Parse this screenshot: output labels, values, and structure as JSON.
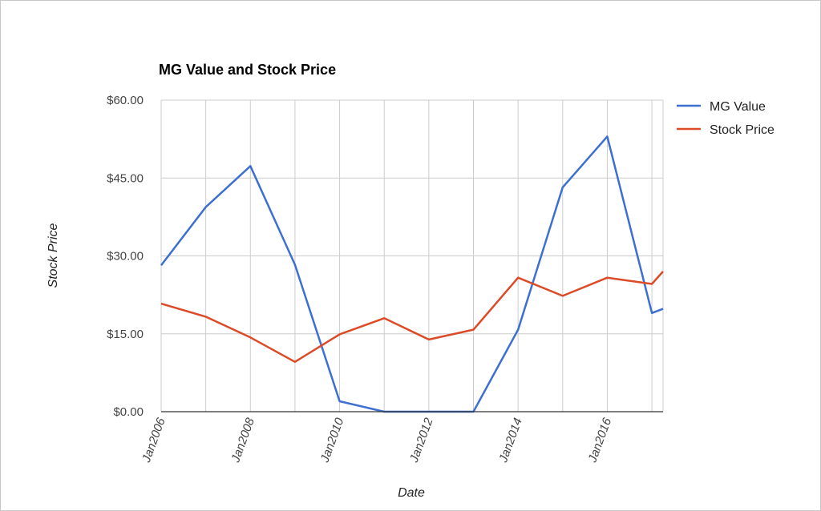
{
  "chart_data": {
    "type": "line",
    "title": "MG Value and Stock Price",
    "xlabel": "Date",
    "ylabel": "Stock Price",
    "x": [
      "2006-01",
      "2007-01",
      "2008-01",
      "2009-01",
      "2010-01",
      "2011-01",
      "2012-01",
      "2013-01",
      "2014-01",
      "2015-01",
      "2016-01",
      "2017-01",
      "2017-04"
    ],
    "x_ticks": [
      "Jan2006",
      "Jan2008",
      "Jan2010",
      "Jan2012",
      "Jan2014",
      "Jan2016"
    ],
    "x_range": [
      "2006-01",
      "2017-04"
    ],
    "ylim": [
      0,
      60
    ],
    "y_ticks": [
      "$0.00",
      "$15.00",
      "$30.00",
      "$45.00",
      "$60.00"
    ],
    "grid": true,
    "legend_position": "right",
    "series": [
      {
        "name": "MG Value",
        "color": "#3d6fd1",
        "values": [
          28.2,
          39.4,
          47.3,
          28.3,
          2.0,
          0.0,
          0.0,
          0.0,
          15.8,
          43.2,
          53.0,
          19.0,
          19.8
        ]
      },
      {
        "name": "Stock Price",
        "color": "#dc4b27",
        "values": [
          20.8,
          18.3,
          14.3,
          9.6,
          14.9,
          18.0,
          13.9,
          15.8,
          25.8,
          22.3,
          25.8,
          24.6,
          27.0
        ]
      }
    ]
  }
}
